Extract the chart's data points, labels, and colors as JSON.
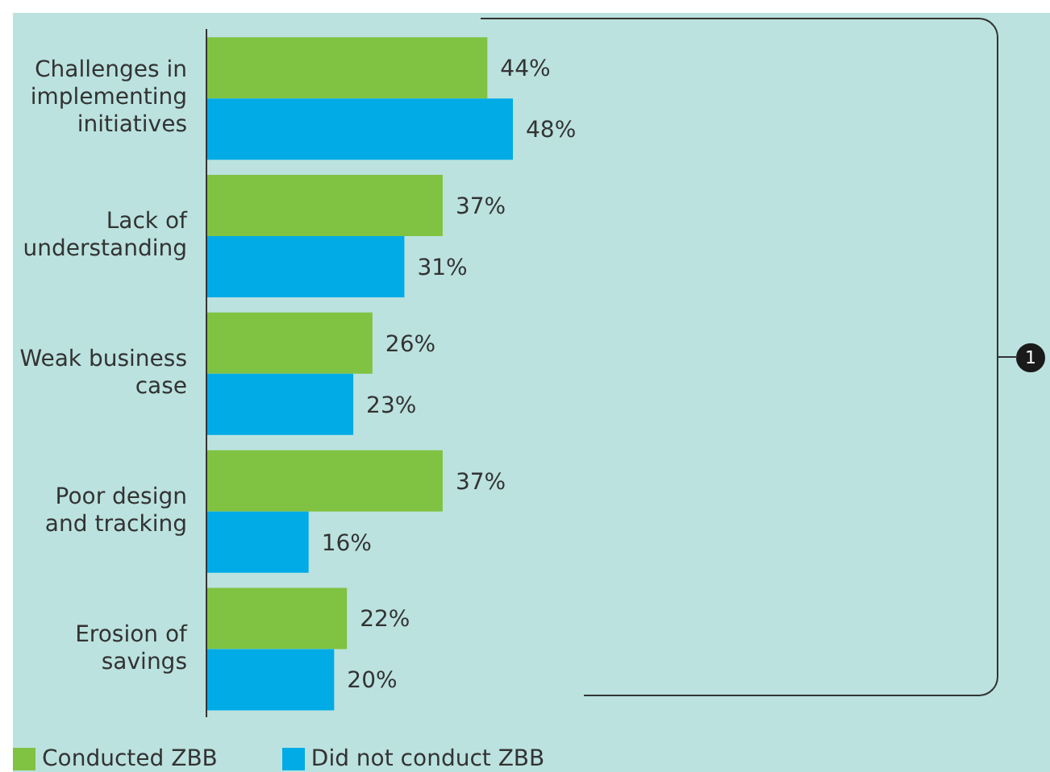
{
  "chart_data": {
    "type": "bar",
    "orientation": "horizontal",
    "categories": [
      "Challenges in implementing initiatives",
      "Lack of understanding",
      "Weak business case",
      "Poor design and tracking",
      "Erosion of savings"
    ],
    "series": [
      {
        "name": "Conducted ZBB",
        "color": "#80c241",
        "values": [
          44,
          37,
          26,
          37,
          22
        ],
        "value_labels": [
          "44%",
          "37%",
          "26%",
          "37%",
          "22%"
        ]
      },
      {
        "name": "Did not conduct ZBB",
        "color": "#00abe6",
        "values": [
          48,
          31,
          23,
          16,
          20
        ],
        "value_labels": [
          "48%",
          "31%",
          "23%",
          "16%",
          "20%"
        ]
      }
    ],
    "legend": "bottom left",
    "annotations": [
      "1"
    ]
  }
}
